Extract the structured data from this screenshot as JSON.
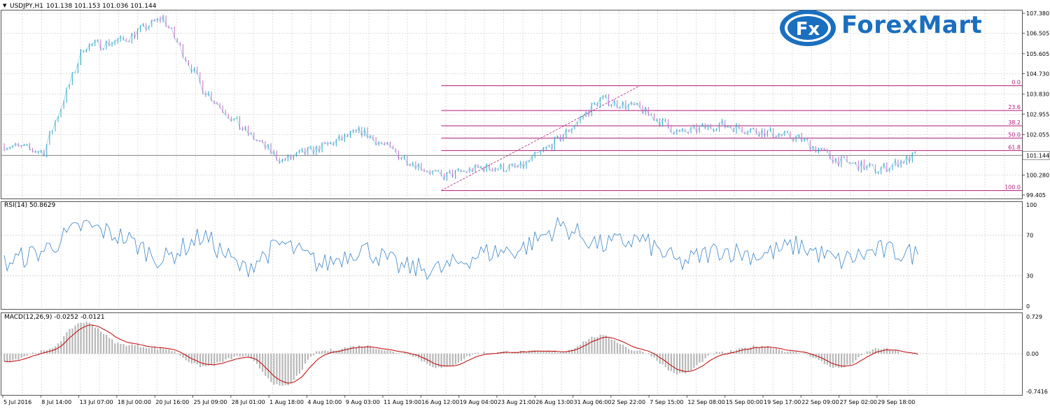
{
  "header": {
    "symbol_menu_icon": "triangle-down-icon",
    "title": "USDJPY,H1",
    "ohlc": "101.138 101.153 101.036 101.144"
  },
  "logo": {
    "badge_text": "Fx",
    "text": "ForexMart",
    "color": "#1a6fbf"
  },
  "colors": {
    "candle_up": "#2aa6c8",
    "candle_down": "#c86ac8",
    "fib_line": "#b0177a",
    "rsi_line": "#3b84c6",
    "macd_hist": "#b8b8b8",
    "macd_signal": "#c00000",
    "grid": "#c8c8c8",
    "border": "#555555"
  },
  "price_panel": {
    "current_price": "101.144",
    "axis_labels": [
      "107.380",
      "106.505",
      "105.605",
      "104.730",
      "103.830",
      "102.955",
      "102.055",
      "101.144",
      "100.280",
      "99.405"
    ],
    "fibonacci_levels": [
      "0.0",
      "23.6",
      "38.2",
      "50.0",
      "61.8",
      "100.0"
    ]
  },
  "rsi_panel": {
    "label": "RSI(14) 50.8629",
    "axis_labels": [
      "100",
      "70",
      "30",
      "0"
    ]
  },
  "macd_panel": {
    "label": "MACD(12,26,9) -0.0252 -0.0121",
    "axis_labels": [
      "0.729",
      "0.00",
      "-0.7416"
    ]
  },
  "time_axis": [
    "5 Jul 2016",
    "8 Jul 14:00",
    "13 Jul 07:00",
    "18 Jul 00:00",
    "20 Jul 16:00",
    "25 Jul 09:00",
    "28 Jul 01:00",
    "1 Aug 18:00",
    "4 Aug 10:00",
    "9 Aug 03:00",
    "11 Aug 19:00",
    "16 Aug 12:00",
    "19 Aug 04:00",
    "23 Aug 21:00",
    "26 Aug 13:00",
    "31 Aug 06:00",
    "2 Sep 22:00",
    "7 Sep 15:00",
    "12 Sep 08:00",
    "15 Sep 00:00",
    "19 Sep 17:00",
    "22 Sep 09:00",
    "27 Sep 02:00",
    "29 Sep 18:00"
  ],
  "chart_data": {
    "type": "line",
    "title": "USDJPY,H1",
    "xlabel": "",
    "ylabel": "",
    "ylim": [
      99.405,
      107.38
    ],
    "grid": true,
    "x": [
      "5 Jul 2016",
      "8 Jul 14:00",
      "13 Jul 07:00",
      "18 Jul 00:00",
      "20 Jul 16:00",
      "25 Jul 09:00",
      "28 Jul 01:00",
      "1 Aug 18:00",
      "4 Aug 10:00",
      "9 Aug 03:00",
      "11 Aug 19:00",
      "16 Aug 12:00",
      "19 Aug 04:00",
      "23 Aug 21:00",
      "26 Aug 13:00",
      "31 Aug 06:00",
      "2 Sep 22:00",
      "7 Sep 15:00",
      "12 Sep 08:00",
      "15 Sep 00:00",
      "19 Sep 17:00",
      "22 Sep 09:00",
      "27 Sep 02:00",
      "29 Sep 18:00"
    ],
    "series": [
      {
        "name": "",
        "values": [
          101.6,
          101.3,
          105.9,
          106.2,
          107.2,
          104.1,
          102.3,
          100.9,
          101.5,
          102.2,
          101.1,
          100.2,
          100.6,
          100.6,
          101.9,
          103.6,
          103.2,
          102.1,
          102.5,
          102.2,
          101.9,
          100.9,
          100.5,
          101.144
        ]
      }
    ],
    "fibonacci": {
      "from": {
        "x": "16 Aug 12:00",
        "y": 99.6
      },
      "to": {
        "x": "2 Sep 22:00",
        "y": 104.2
      }
    },
    "rsi": {
      "period": 14,
      "current": 50.8629,
      "ylim": [
        0,
        100
      ],
      "levels": [
        30,
        70
      ],
      "values": [
        42,
        55,
        80,
        68,
        45,
        70,
        36,
        62,
        40,
        58,
        38,
        36,
        52,
        56,
        80,
        60,
        66,
        42,
        56,
        50,
        60,
        44,
        55,
        50.86
      ]
    },
    "macd": {
      "params": [
        12,
        26,
        9
      ],
      "main": -0.0252,
      "signal": -0.0121,
      "ylim": [
        -0.7416,
        0.729
      ],
      "histogram": [
        -0.15,
        0.05,
        0.62,
        0.18,
        0.1,
        -0.25,
        -0.05,
        -0.65,
        0.06,
        0.15,
        0.02,
        -0.28,
        0.02,
        0.04,
        0.04,
        0.35,
        0.05,
        -0.4,
        0.02,
        0.15,
        0.02,
        -0.28,
        0.1,
        -0.0252
      ]
    }
  }
}
